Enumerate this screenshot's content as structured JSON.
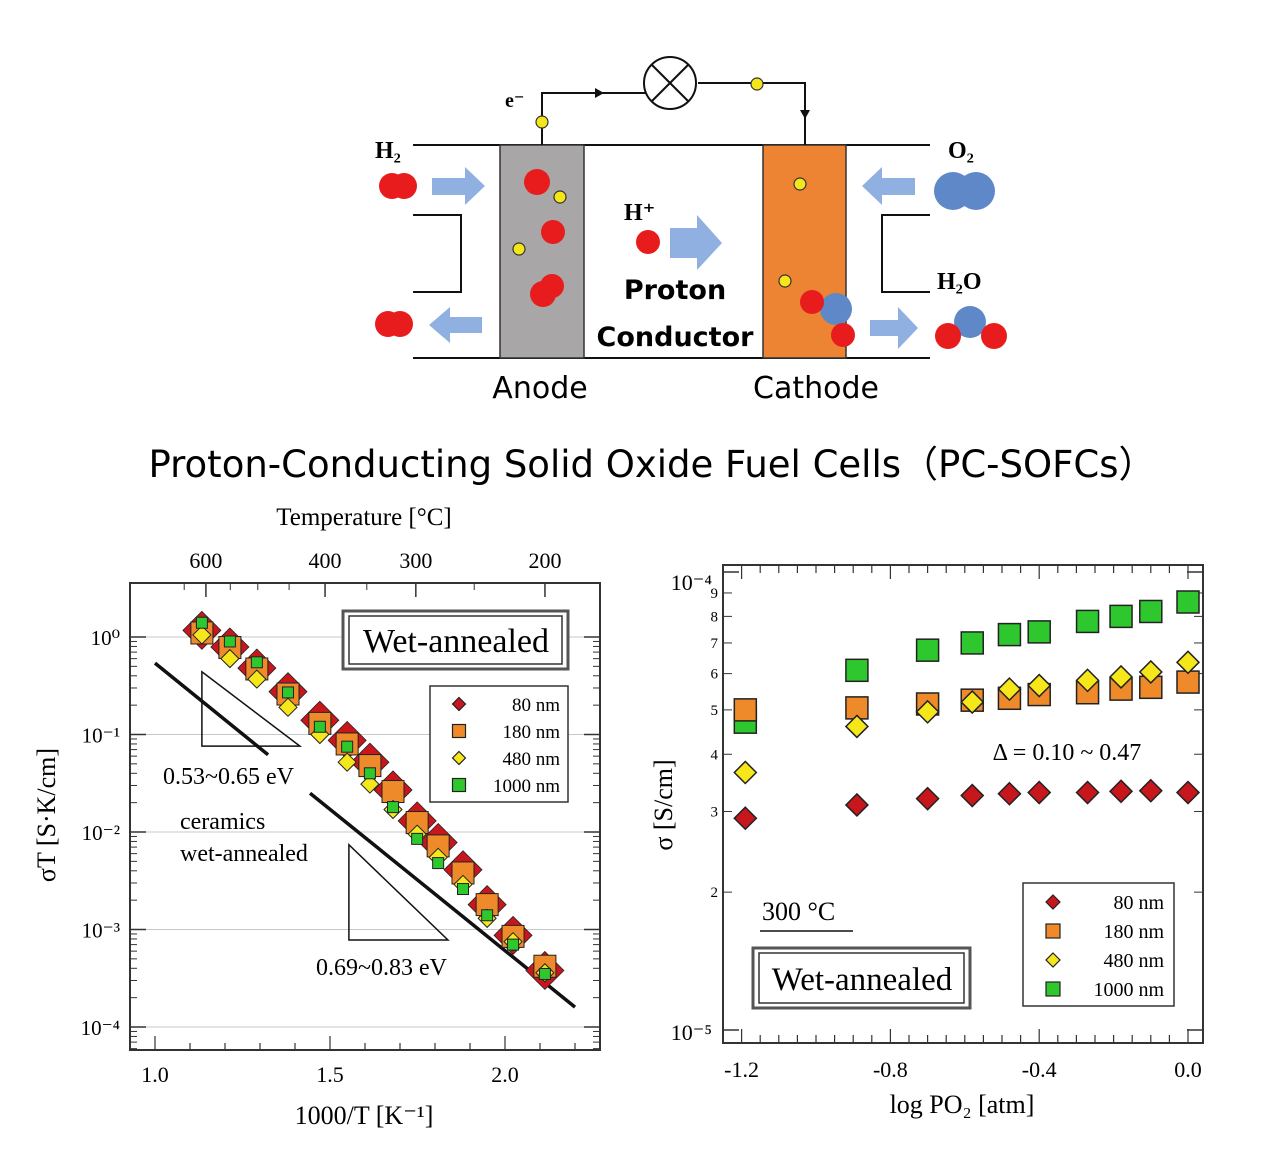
{
  "diagram": {
    "h2_label": "H₂",
    "o2_label": "O₂",
    "h2o_label": "H₂O",
    "electron_label": "e⁻",
    "proton_label": "H⁺",
    "conductor_line1": "Proton",
    "conductor_line2": "Conductor",
    "anode_label": "Anode",
    "cathode_label": "Cathode",
    "title": "Proton-Conducting Solid Oxide Fuel Cells（PC-SOFCs）",
    "colors": {
      "anode": "#a8a6a6",
      "cathode": "#ec8434",
      "hydrogen": "#e81c1c",
      "oxygen": "#5f88c8",
      "electron": "#f5e61a",
      "arrow": "#8fb0e0"
    }
  },
  "chart_data": [
    {
      "type": "scatter",
      "top_axis_label": "Temperature [°C]",
      "top_ticks": [
        600,
        400,
        300,
        200
      ],
      "xlabel": "1000/T [K⁻¹]",
      "ylabel": "σT [S·K/cm]",
      "xlim": [
        0.93,
        2.27
      ],
      "ylim": [
        6e-05,
        3.6
      ],
      "yscale": "log",
      "xticks": [
        "1.0",
        "1.5",
        "2.0"
      ],
      "yticks": [
        "10⁰",
        "10⁻¹",
        "10⁻²",
        "10⁻³",
        "10⁻⁴"
      ],
      "grid": "horizontal",
      "legend_position": "top-right",
      "box_label": "Wet-annealed",
      "annotations": [
        "0.53~0.65 eV",
        "ceramics",
        "wet-annealed",
        "0.69~0.83 eV"
      ],
      "x": [
        1.134,
        1.214,
        1.291,
        1.38,
        1.471,
        1.549,
        1.614,
        1.68,
        1.749,
        1.809,
        1.88,
        1.949,
        2.023,
        2.114
      ],
      "series": [
        {
          "name": "80 nm",
          "marker": "diamond",
          "color": "#c8161d",
          "values": [
            1.17,
            0.79,
            0.48,
            0.275,
            0.14,
            0.087,
            0.052,
            0.027,
            0.013,
            0.0078,
            0.0041,
            0.0018,
            0.00087,
            0.00038
          ]
        },
        {
          "name": "180 nm",
          "marker": "square",
          "color": "#ee8a2a",
          "values": [
            1.1,
            0.78,
            0.47,
            0.26,
            0.13,
            0.08,
            0.048,
            0.026,
            0.0125,
            0.0072,
            0.0038,
            0.0018,
            0.00085,
            0.00042
          ]
        },
        {
          "name": "480 nm",
          "marker": "diamond",
          "color": "#f6e71a",
          "values": [
            1.05,
            0.6,
            0.37,
            0.19,
            0.1,
            0.052,
            0.031,
            0.017,
            0.0095,
            0.0055,
            0.0029,
            0.0013,
            0.00075,
            0.00036
          ]
        },
        {
          "name": "1000 nm",
          "marker": "square",
          "color": "#2ec82e",
          "values": [
            1.4,
            0.9,
            0.55,
            0.27,
            0.12,
            0.075,
            0.04,
            0.018,
            0.0085,
            0.0048,
            0.0026,
            0.0014,
            0.0007,
            0.00035
          ]
        }
      ],
      "fit_lines": [
        {
          "x": [
            1.0,
            1.323
          ],
          "y": [
            0.54,
            0.062
          ]
        },
        {
          "x": [
            1.443,
            2.2
          ],
          "y": [
            0.025,
            0.00016
          ]
        }
      ],
      "slope_triangles": [
        {
          "x": [
            1.134,
            1.414
          ],
          "y": [
            0.44,
            0.076
          ]
        },
        {
          "x": [
            1.554,
            1.837
          ],
          "y": [
            0.0074,
            0.00078
          ]
        }
      ]
    },
    {
      "type": "scatter",
      "xlabel": "log PO₂ [atm]",
      "ylabel": "σ [S/cm]",
      "xlim": [
        -1.25,
        0.04
      ],
      "ylim": [
        9.6e-06,
        0.000104
      ],
      "yscale": "log",
      "xticks": [
        "-1.2",
        "-0.8",
        "-0.4",
        "0.0"
      ],
      "yticks_major": [
        "10⁻⁴",
        "10⁻⁵"
      ],
      "yticks_minor": [
        "9",
        "8",
        "7",
        "6",
        "5",
        "4",
        "3",
        "2"
      ],
      "legend_position": "bottom-right",
      "box_label": "Wet-annealed",
      "temperature_label": "300 °C",
      "annotation": "Δ = 0.10 ~ 0.47",
      "x": [
        -1.19,
        -0.89,
        -0.7,
        -0.58,
        -0.48,
        -0.4,
        -0.27,
        -0.18,
        -0.1,
        0.0
      ],
      "series": [
        {
          "name": "80 nm",
          "marker": "diamond",
          "color": "#c8161d",
          "values": [
            2.9e-05,
            3.1e-05,
            3.2e-05,
            3.25e-05,
            3.28e-05,
            3.3e-05,
            3.3e-05,
            3.32e-05,
            3.33e-05,
            3.3e-05
          ]
        },
        {
          "name": "180 nm",
          "marker": "square",
          "color": "#ee8a2a",
          "values": [
            5e-05,
            5.05e-05,
            5.15e-05,
            5.25e-05,
            5.3e-05,
            5.4e-05,
            5.45e-05,
            5.55e-05,
            5.6e-05,
            5.75e-05
          ]
        },
        {
          "name": "480 nm",
          "marker": "diamond",
          "color": "#f6e71a",
          "values": [
            3.65e-05,
            4.6e-05,
            4.95e-05,
            5.2e-05,
            5.55e-05,
            5.65e-05,
            5.8e-05,
            5.9e-05,
            6.05e-05,
            6.35e-05
          ]
        },
        {
          "name": "1000 nm",
          "marker": "square",
          "color": "#2ec82e",
          "values": [
            4.7e-05,
            6.1e-05,
            6.75e-05,
            7e-05,
            7.3e-05,
            7.4e-05,
            7.8e-05,
            8e-05,
            8.2e-05,
            8.6e-05
          ]
        }
      ]
    }
  ]
}
